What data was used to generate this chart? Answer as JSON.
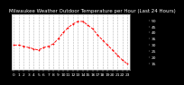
{
  "title": "Milwaukee Weather Outdoor Temperature per Hour (Last 24 Hours)",
  "hours": [
    0,
    1,
    2,
    3,
    4,
    5,
    6,
    7,
    8,
    9,
    10,
    11,
    12,
    13,
    14,
    15,
    16,
    17,
    18,
    19,
    20,
    21,
    22,
    23
  ],
  "temps": [
    30,
    30,
    29,
    28,
    27,
    26,
    28,
    29,
    31,
    35,
    40,
    44,
    47,
    49,
    49,
    46,
    43,
    38,
    34,
    30,
    26,
    22,
    18,
    15
  ],
  "line_color": "#ff0000",
  "bg_color": "#000000",
  "plot_bg": "#ffffff",
  "grid_color": "#777777",
  "ylim": [
    10,
    55
  ],
  "yticks": [
    15,
    20,
    25,
    30,
    35,
    40,
    45,
    50
  ],
  "title_fontsize": 4.0,
  "tick_fontsize": 3.2,
  "marker": "o",
  "markersize": 1.0,
  "linewidth": 0.65
}
